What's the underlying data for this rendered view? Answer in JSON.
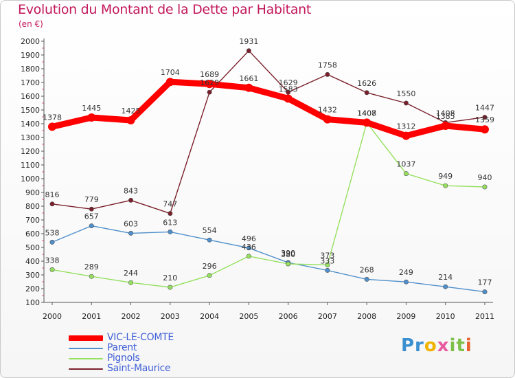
{
  "chart_data": {
    "type": "line",
    "title": "Evolution du Montant de la Dette par Habitant",
    "subtitle": "(en €)",
    "x": [
      "2000",
      "2001",
      "2002",
      "2003",
      "2004",
      "2005",
      "2006",
      "2007",
      "2008",
      "2009",
      "2010",
      "2011"
    ],
    "ylim": [
      100,
      2000
    ],
    "yticks": [
      100,
      200,
      300,
      400,
      500,
      600,
      700,
      800,
      900,
      1000,
      1100,
      1200,
      1300,
      1400,
      1500,
      1600,
      1700,
      1800,
      1900,
      2000
    ],
    "grid": false,
    "legend_position": "bottom-left",
    "series": [
      {
        "name": "VIC-LE-COMTE",
        "color": "#ff0000",
        "values": [
          1378,
          1445,
          1425,
          1704,
          1689,
          1661,
          1583,
          1432,
          1408,
          1312,
          1385,
          1359
        ]
      },
      {
        "name": "Parent",
        "color": "#4f8fcb",
        "values": [
          538,
          657,
          603,
          613,
          554,
          496,
          390,
          333,
          268,
          249,
          214,
          177
        ]
      },
      {
        "name": "Pignols",
        "color": "#95e05e",
        "values": [
          338,
          289,
          244,
          210,
          296,
          436,
          380,
          373,
          1407,
          1037,
          949,
          940
        ]
      },
      {
        "name": "Saint-Maurice",
        "color": "#7a1f2b",
        "values": [
          816,
          779,
          843,
          747,
          1629,
          1931,
          1629,
          1758,
          1626,
          1550,
          1408,
          1447
        ]
      }
    ]
  },
  "logo": {
    "text": "Proxiti",
    "p1": "Pr",
    "p2": "o",
    "p3": "x",
    "p4": "it",
    "p5": "i"
  }
}
